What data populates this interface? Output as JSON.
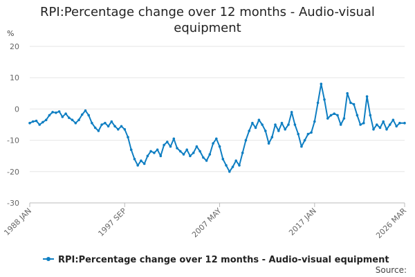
{
  "chart_data": {
    "type": "line",
    "title": "RPI:Percentage change over 12 months - Audio-visual equipment",
    "ylabel": "%",
    "xlabel": "",
    "ylim": [
      -30,
      20
    ],
    "y_ticks": [
      "20",
      "10",
      "0",
      "-10",
      "-20",
      "-30"
    ],
    "x_ticks": [
      "1988 JAN",
      "1997 SEP",
      "2007 MAY",
      "2017 JAN",
      "2026 MAR"
    ],
    "grid": "horizontal",
    "legend_position": "bottom",
    "series": [
      {
        "name": "RPI:Percentage change over 12 months - Audio-visual equipment",
        "color": "#0e7ec2",
        "points": [
          [
            "1988-01",
            -4.5
          ],
          [
            "1988-05",
            -4.0
          ],
          [
            "1988-09",
            -3.8
          ],
          [
            "1989-01",
            -5.0
          ],
          [
            "1989-05",
            -4.2
          ],
          [
            "1989-09",
            -3.5
          ],
          [
            "1990-01",
            -2.0
          ],
          [
            "1990-05",
            -1.0
          ],
          [
            "1990-09",
            -1.2
          ],
          [
            "1991-01",
            -0.8
          ],
          [
            "1991-05",
            -2.5
          ],
          [
            "1991-09",
            -1.5
          ],
          [
            "1992-01",
            -2.8
          ],
          [
            "1992-05",
            -3.5
          ],
          [
            "1992-09",
            -4.5
          ],
          [
            "1993-01",
            -3.5
          ],
          [
            "1993-05",
            -1.8
          ],
          [
            "1993-09",
            -0.5
          ],
          [
            "1994-01",
            -2.0
          ],
          [
            "1994-05",
            -4.5
          ],
          [
            "1994-09",
            -6.0
          ],
          [
            "1995-01",
            -7.0
          ],
          [
            "1995-05",
            -5.0
          ],
          [
            "1995-09",
            -4.5
          ],
          [
            "1996-01",
            -5.5
          ],
          [
            "1996-05",
            -4.0
          ],
          [
            "1996-09",
            -5.5
          ],
          [
            "1997-01",
            -6.5
          ],
          [
            "1997-05",
            -5.5
          ],
          [
            "1997-09",
            -6.5
          ],
          [
            "1998-01",
            -9.0
          ],
          [
            "1998-05",
            -13.0
          ],
          [
            "1998-09",
            -16.0
          ],
          [
            "1999-01",
            -18.0
          ],
          [
            "1999-05",
            -16.5
          ],
          [
            "1999-09",
            -17.5
          ],
          [
            "2000-01",
            -15.0
          ],
          [
            "2000-05",
            -13.5
          ],
          [
            "2000-09",
            -14.0
          ],
          [
            "2001-01",
            -13.0
          ],
          [
            "2001-05",
            -15.0
          ],
          [
            "2001-09",
            -11.5
          ],
          [
            "2002-01",
            -10.5
          ],
          [
            "2002-05",
            -12.0
          ],
          [
            "2002-09",
            -9.5
          ],
          [
            "2003-01",
            -12.5
          ],
          [
            "2003-05",
            -13.5
          ],
          [
            "2003-09",
            -14.5
          ],
          [
            "2004-01",
            -13.0
          ],
          [
            "2004-05",
            -15.0
          ],
          [
            "2004-09",
            -14.0
          ],
          [
            "2005-01",
            -12.0
          ],
          [
            "2005-05",
            -13.5
          ],
          [
            "2005-09",
            -15.5
          ],
          [
            "2006-01",
            -16.5
          ],
          [
            "2006-05",
            -14.5
          ],
          [
            "2006-09",
            -11.0
          ],
          [
            "2007-01",
            -9.5
          ],
          [
            "2007-05",
            -12.0
          ],
          [
            "2007-09",
            -16.0
          ],
          [
            "2008-01",
            -18.0
          ],
          [
            "2008-05",
            -20.0
          ],
          [
            "2008-09",
            -18.5
          ],
          [
            "2009-01",
            -16.5
          ],
          [
            "2009-05",
            -18.0
          ],
          [
            "2009-09",
            -14.0
          ],
          [
            "2010-01",
            -10.0
          ],
          [
            "2010-05",
            -7.0
          ],
          [
            "2010-09",
            -4.5
          ],
          [
            "2011-01",
            -6.0
          ],
          [
            "2011-05",
            -3.5
          ],
          [
            "2011-09",
            -5.0
          ],
          [
            "2012-01",
            -7.0
          ],
          [
            "2012-05",
            -11.0
          ],
          [
            "2012-09",
            -9.0
          ],
          [
            "2013-01",
            -5.0
          ],
          [
            "2013-05",
            -7.0
          ],
          [
            "2013-09",
            -4.5
          ],
          [
            "2014-01",
            -6.5
          ],
          [
            "2014-05",
            -5.0
          ],
          [
            "2014-09",
            -1.0
          ],
          [
            "2015-01",
            -5.0
          ],
          [
            "2015-05",
            -8.0
          ],
          [
            "2015-09",
            -12.0
          ],
          [
            "2016-01",
            -10.0
          ],
          [
            "2016-05",
            -8.0
          ],
          [
            "2016-09",
            -7.5
          ],
          [
            "2017-01",
            -4.0
          ],
          [
            "2017-05",
            2.0
          ],
          [
            "2017-09",
            8.0
          ],
          [
            "2018-01",
            3.0
          ],
          [
            "2018-05",
            -3.0
          ],
          [
            "2018-09",
            -2.0
          ],
          [
            "2019-01",
            -1.5
          ],
          [
            "2019-05",
            -2.0
          ],
          [
            "2019-09",
            -5.0
          ],
          [
            "2020-01",
            -3.0
          ],
          [
            "2020-05",
            5.0
          ],
          [
            "2020-09",
            2.0
          ],
          [
            "2021-01",
            1.5
          ],
          [
            "2021-05",
            -2.0
          ],
          [
            "2021-09",
            -5.0
          ],
          [
            "2022-01",
            -4.5
          ],
          [
            "2022-05",
            4.0
          ],
          [
            "2022-09",
            -2.0
          ],
          [
            "2023-01",
            -6.5
          ],
          [
            "2023-05",
            -5.0
          ],
          [
            "2023-09",
            -6.0
          ],
          [
            "2024-01",
            -4.0
          ],
          [
            "2024-05",
            -6.5
          ],
          [
            "2024-09",
            -5.0
          ],
          [
            "2025-01",
            -3.5
          ],
          [
            "2025-05",
            -5.5
          ],
          [
            "2025-09",
            -4.5
          ],
          [
            "2026-03",
            -4.5
          ]
        ]
      }
    ],
    "source_label": "Source:"
  }
}
